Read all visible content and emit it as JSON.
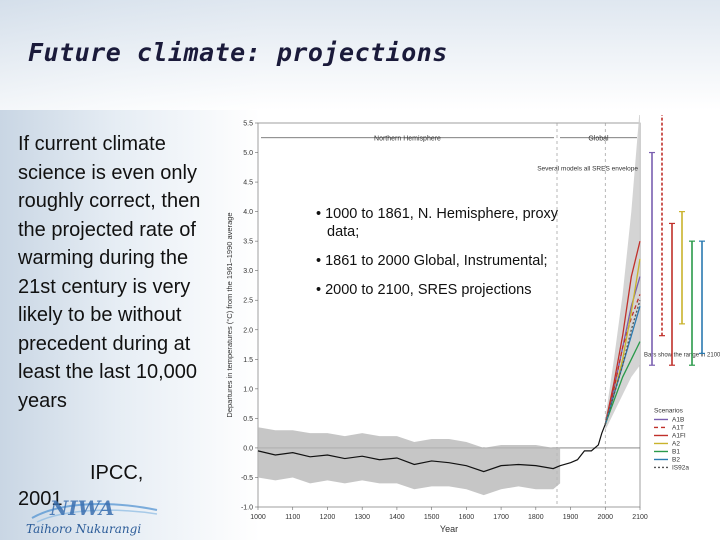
{
  "slide": {
    "title": "Future climate: projections",
    "body": "If current climate science is even only roughly correct, then the projected rate of warming during the 21st century is very likely to be without precedent during at least the last 10,000 years",
    "source_org": "IPCC,",
    "source_year": "2001",
    "logo_text": "NIWA",
    "logo_subtext": "Taihoro Nukurangi"
  },
  "annotations": [
    "• 1000 to 1861, N. Hemisphere, proxy data;",
    "• 1861 to 2000 Global, Instrumental;",
    "• 2000 to 2100, SRES projections"
  ],
  "chart_data": {
    "type": "line",
    "title": "",
    "xlabel": "Year",
    "ylabel": "Departures in temperatures (°C) from the 1961–1990 average",
    "xlim": [
      1000,
      2100
    ],
    "ylim": [
      -1.0,
      5.5
    ],
    "x_ticks": [
      "1000",
      "1100",
      "1200",
      "1300",
      "1400",
      "1500",
      "1600",
      "1700",
      "1800",
      "1900",
      "2000",
      "2100"
    ],
    "y_ticks": [
      "-1.0",
      "-0.5",
      "0.0",
      "0.5",
      "1.0",
      "1.5",
      "2.0",
      "2.5",
      "3.0",
      "3.5",
      "4.0",
      "4.5",
      "5.0",
      "5.5"
    ],
    "region_labels": [
      "Northern Hemisphere",
      "Global"
    ],
    "annotation_models": "Several models all SRES envelope",
    "annotation_bars": "Bars show the range in 2100 produced by several models",
    "legend_title": "Scenarios",
    "historical": {
      "x": [
        1000,
        1050,
        1100,
        1150,
        1200,
        1250,
        1300,
        1350,
        1400,
        1450,
        1500,
        1550,
        1600,
        1650,
        1700,
        1750,
        1800,
        1850,
        1870,
        1900,
        1920,
        1940,
        1960,
        1980,
        1990,
        2000
      ],
      "y": [
        -0.05,
        -0.12,
        -0.08,
        -0.15,
        -0.12,
        -0.18,
        -0.14,
        -0.2,
        -0.17,
        -0.28,
        -0.22,
        -0.25,
        -0.3,
        -0.4,
        -0.3,
        -0.28,
        -0.3,
        -0.35,
        -0.3,
        -0.25,
        -0.2,
        -0.05,
        -0.05,
        0.05,
        0.25,
        0.4
      ]
    },
    "uncertainty": {
      "upper": [
        0.35,
        0.3,
        0.3,
        0.25,
        0.25,
        0.2,
        0.25,
        0.2,
        0.2,
        0.1,
        0.15,
        0.15,
        0.1,
        0.0,
        0.05,
        0.05,
        0.05,
        0.0,
        0.0
      ],
      "lower": [
        -0.5,
        -0.55,
        -0.5,
        -0.6,
        -0.55,
        -0.6,
        -0.55,
        -0.6,
        -0.6,
        -0.7,
        -0.65,
        -0.65,
        -0.7,
        -0.8,
        -0.7,
        -0.65,
        -0.7,
        -0.7,
        -0.6
      ],
      "x": [
        1000,
        1050,
        1100,
        1150,
        1200,
        1250,
        1300,
        1350,
        1400,
        1450,
        1500,
        1550,
        1600,
        1650,
        1700,
        1750,
        1800,
        1850,
        1870
      ]
    },
    "envelope": {
      "x": [
        2000,
        2025,
        2050,
        2075,
        2100
      ],
      "upper": [
        0.5,
        1.5,
        2.6,
        4.0,
        5.8
      ],
      "lower": [
        0.3,
        0.6,
        0.9,
        1.2,
        1.4
      ]
    },
    "series": [
      {
        "name": "A1B",
        "color": "#7a5fb0",
        "dash": "",
        "x": [
          2000,
          2025,
          2050,
          2075,
          2100
        ],
        "y": [
          0.4,
          1.0,
          1.7,
          2.4,
          2.9
        ]
      },
      {
        "name": "A1T",
        "color": "#c0302a",
        "dash": "4,3",
        "x": [
          2000,
          2025,
          2050,
          2075,
          2100
        ],
        "y": [
          0.4,
          1.0,
          1.7,
          2.2,
          2.6
        ]
      },
      {
        "name": "A1FI",
        "color": "#c0302a",
        "dash": "",
        "x": [
          2000,
          2025,
          2050,
          2075,
          2100
        ],
        "y": [
          0.4,
          1.1,
          1.9,
          2.9,
          3.5
        ]
      },
      {
        "name": "A2",
        "color": "#c9b32c",
        "dash": "",
        "x": [
          2000,
          2025,
          2050,
          2075,
          2100
        ],
        "y": [
          0.4,
          0.9,
          1.5,
          2.3,
          3.2
        ]
      },
      {
        "name": "B1",
        "color": "#2a9a4a",
        "dash": "",
        "x": [
          2000,
          2025,
          2050,
          2075,
          2100
        ],
        "y": [
          0.4,
          0.8,
          1.2,
          1.5,
          1.8
        ]
      },
      {
        "name": "B2",
        "color": "#2a7ab0",
        "dash": "",
        "x": [
          2000,
          2025,
          2050,
          2075,
          2100
        ],
        "y": [
          0.4,
          0.9,
          1.4,
          1.9,
          2.4
        ]
      },
      {
        "name": "IS92a",
        "color": "#555555",
        "dash": "2,2",
        "x": [
          2000,
          2025,
          2050,
          2075,
          2100
        ],
        "y": [
          0.4,
          0.9,
          1.4,
          2.0,
          2.5
        ]
      }
    ],
    "range_bars": [
      {
        "name": "A1B",
        "color": "#7a5fb0",
        "low": 1.4,
        "high": 5.0
      },
      {
        "name": "A1T",
        "color": "#c0302a",
        "low": 1.9,
        "high": 5.8
      },
      {
        "name": "A1FI",
        "color": "#c0302a",
        "low": 1.4,
        "high": 3.8
      },
      {
        "name": "A2",
        "color": "#c9b32c",
        "low": 2.1,
        "high": 4.0
      },
      {
        "name": "B1",
        "color": "#2a9a4a",
        "low": 1.4,
        "high": 3.5
      },
      {
        "name": "B2",
        "color": "#2a7ab0",
        "low": 1.6,
        "high": 3.5
      }
    ]
  }
}
